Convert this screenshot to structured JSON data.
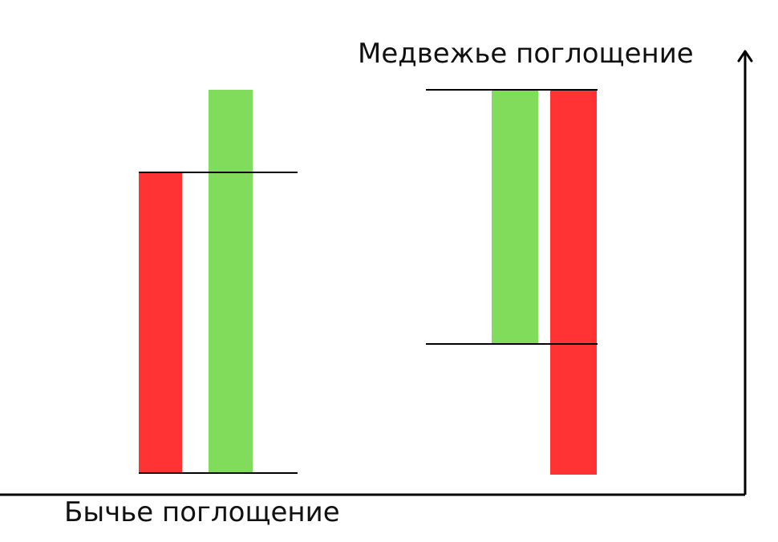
{
  "diagram": {
    "colors": {
      "bullish": "#80dc5a",
      "bearish": "#ff3333",
      "line": "#000000",
      "background": "#ffffff"
    },
    "bearish_engulfing": {
      "label": "Медвежье поглощение"
    },
    "bullish_engulfing": {
      "label": "Бычье поглощение"
    },
    "axes": {
      "icons": [
        "arrow-up-icon"
      ]
    }
  }
}
